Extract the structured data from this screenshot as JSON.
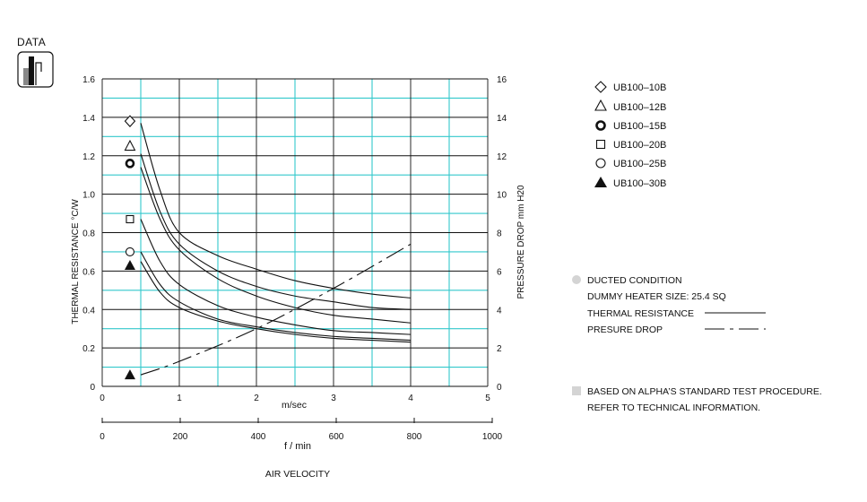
{
  "header": {
    "label": "DATA",
    "icon": "bar-chart-icon"
  },
  "chart_data": {
    "type": "line",
    "xlabel": "m/sec",
    "xlim": [
      0,
      5
    ],
    "x_ticks": [
      0,
      1,
      2,
      3,
      4,
      5
    ],
    "secondary_xlabel": "f / min",
    "secondary_xlim": [
      0,
      1000
    ],
    "secondary_x_ticks": [
      0,
      200,
      400,
      600,
      800,
      1000
    ],
    "axis_caption": "AIR VELOCITY",
    "ylabel": "THERMAL  RESISTANCE   °C/W",
    "ylim": [
      0,
      1.6
    ],
    "y_ticks": [
      "0",
      "0.2",
      "0.4",
      "0.6",
      "0.8",
      "1.0",
      "1.2",
      "1.4",
      "1.6"
    ],
    "y2label": "PRESSURE  DROP    mm H20",
    "y2lim": [
      0,
      16
    ],
    "y2_ticks": [
      "0",
      "2",
      "4",
      "6",
      "8",
      "10",
      "12",
      "14",
      "16"
    ],
    "grid": true,
    "grid_color": "#33c8cc",
    "series": [
      {
        "name": "UB100-10B",
        "marker": "diamond-open",
        "marker_y": 1.38,
        "x": [
          0.5,
          0.75,
          1.0,
          1.5,
          2.0,
          2.5,
          3.0,
          3.5,
          4.0
        ],
        "y": [
          1.37,
          1.02,
          0.8,
          0.68,
          0.61,
          0.55,
          0.51,
          0.48,
          0.46
        ]
      },
      {
        "name": "UB100-12B",
        "marker": "triangle-open",
        "marker_y": 1.25,
        "x": [
          0.5,
          0.75,
          1.0,
          1.5,
          2.0,
          2.5,
          3.0,
          3.5,
          4.0
        ],
        "y": [
          1.21,
          0.91,
          0.74,
          0.6,
          0.52,
          0.47,
          0.44,
          0.41,
          0.4
        ]
      },
      {
        "name": "UB100-15B",
        "marker": "circle-bold",
        "marker_y": 1.16,
        "x": [
          0.5,
          0.75,
          1.0,
          1.5,
          2.0,
          2.5,
          3.0,
          3.5,
          4.0
        ],
        "y": [
          1.14,
          0.87,
          0.71,
          0.56,
          0.47,
          0.41,
          0.37,
          0.35,
          0.33
        ]
      },
      {
        "name": "UB100-20B",
        "marker": "square-open",
        "marker_y": 0.87,
        "x": [
          0.5,
          0.75,
          1.0,
          1.5,
          2.0,
          2.5,
          3.0,
          3.5,
          4.0
        ],
        "y": [
          0.87,
          0.65,
          0.53,
          0.42,
          0.36,
          0.32,
          0.29,
          0.28,
          0.27
        ]
      },
      {
        "name": "UB100-25B",
        "marker": "circle-open",
        "marker_y": 0.7,
        "x": [
          0.5,
          0.75,
          1.0,
          1.5,
          2.0,
          2.5,
          3.0,
          3.5,
          4.0
        ],
        "y": [
          0.7,
          0.53,
          0.44,
          0.35,
          0.31,
          0.28,
          0.26,
          0.25,
          0.24
        ]
      },
      {
        "name": "UB100-30B",
        "marker": "triangle-filled",
        "marker_y": 0.63,
        "x": [
          0.5,
          0.75,
          1.0,
          1.5,
          2.0,
          2.5,
          3.0,
          3.5,
          4.0
        ],
        "y": [
          0.65,
          0.49,
          0.41,
          0.34,
          0.3,
          0.27,
          0.25,
          0.24,
          0.23
        ]
      }
    ],
    "pressure_drop": {
      "marker": "triangle-filled",
      "marker_y": 0.6,
      "x": [
        0.5,
        1.0,
        2.0,
        3.0,
        4.0
      ],
      "y": [
        0.6,
        1.3,
        3.0,
        5.1,
        7.4
      ]
    }
  },
  "legend": {
    "items": [
      "UB100–10B",
      "UB100–12B",
      "UB100–15B",
      "UB100–20B",
      "UB100–25B",
      "UB100–30B"
    ]
  },
  "notes": {
    "condition": "DUCTED CONDITION",
    "heater": "DUMMY HEATER SIZE: 25.4 SQ",
    "thermal_label": "THERMAL RESISTANCE",
    "pressure_label": "PRESURE DROP",
    "procedure_1": "BASED ON ALPHA’S STANDARD TEST PROCEDURE.",
    "procedure_2": "REFER TO TECHNICAL INFORMATION."
  }
}
